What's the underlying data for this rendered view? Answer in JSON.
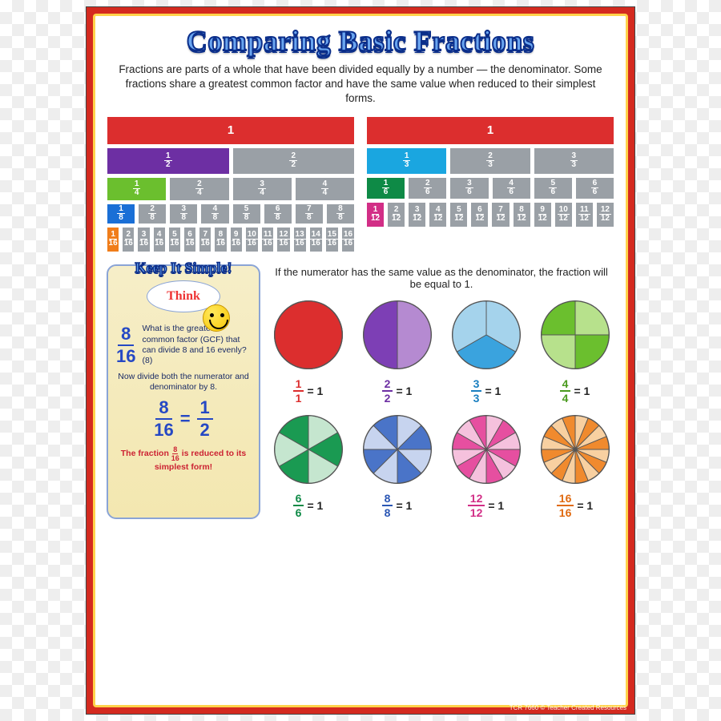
{
  "title": "Comparing Basic Fractions",
  "intro": "Fractions are parts of a whole that have been divided equally by a number — the denominator. Some fractions share a greatest common factor and have the same value when reduced to their simplest forms.",
  "colors": {
    "gray": "#9aa0a6",
    "whole_red": "#dc2e2e",
    "purple": "#6d2fa3",
    "green4": "#6bbf2e",
    "blue8": "#1a6fd6",
    "orange16": "#f07d1a",
    "cyan3": "#1aa6e0",
    "green6": "#0e8a46",
    "magenta12": "#d22e86"
  },
  "left_bars": [
    {
      "den": 1,
      "hclass": "whole",
      "highlight": 0,
      "color": "whole_red"
    },
    {
      "den": 2,
      "hclass": "h2",
      "highlight": 0,
      "color": "purple"
    },
    {
      "den": 4,
      "hclass": "h4",
      "highlight": 0,
      "color": "green4"
    },
    {
      "den": 8,
      "hclass": "h8",
      "highlight": 0,
      "color": "blue8"
    },
    {
      "den": 16,
      "hclass": "h16",
      "highlight": 0,
      "color": "orange16"
    }
  ],
  "right_bars": [
    {
      "den": 1,
      "hclass": "whole",
      "highlight": 0,
      "color": "whole_red"
    },
    {
      "den": 3,
      "hclass": "h3",
      "highlight": 0,
      "color": "cyan3"
    },
    {
      "den": 6,
      "hclass": "h6",
      "highlight": 0,
      "color": "green6"
    },
    {
      "den": 12,
      "hclass": "h12",
      "highlight": 0,
      "color": "magenta12"
    }
  ],
  "think": {
    "banner": "Keep It Simple!",
    "cloud": "Think",
    "frac_top": "8",
    "frac_bot": "16",
    "q": "What is the greatest common factor (GCF) that can divide 8 and 16 evenly? (8)",
    "step": "Now divide both the numerator and denominator by 8.",
    "eq_l_top": "8",
    "eq_l_bot": "16",
    "eq_r_top": "1",
    "eq_r_bot": "2",
    "conclusion_a": "The fraction ",
    "conclusion_b": " is reduced to its simplest form!"
  },
  "circles_intro": "If the numerator has the same value as the denominator, the fraction will be equal to 1.",
  "circles": [
    {
      "n": 1,
      "d": 1,
      "fill": "#dc2e2e",
      "alt": "#c22",
      "text": "#dc2e2e"
    },
    {
      "n": 2,
      "d": 2,
      "fill": "#7d3fb5",
      "alt": "#b58ad1",
      "text": "#6d2fa3"
    },
    {
      "n": 3,
      "d": 3,
      "fill": "#3aa3de",
      "alt": "#a5d3ec",
      "text": "#1a7fc0"
    },
    {
      "n": 4,
      "d": 4,
      "fill": "#6bbf2e",
      "alt": "#b7e18c",
      "text": "#4a9a1e"
    },
    {
      "n": 6,
      "d": 6,
      "fill": "#1a9a52",
      "alt": "#c5e6cf",
      "text": "#0e8a46"
    },
    {
      "n": 8,
      "d": 8,
      "fill": "#4a74c8",
      "alt": "#c7d4ef",
      "text": "#2a56b4"
    },
    {
      "n": 12,
      "d": 12,
      "fill": "#e64fa0",
      "alt": "#f5c1dd",
      "text": "#d22e86"
    },
    {
      "n": 16,
      "d": 16,
      "fill": "#f08a2e",
      "alt": "#f8d0a1",
      "text": "#e06a10"
    }
  ],
  "footer": "TCR 7660  © Teacher Created Resources"
}
